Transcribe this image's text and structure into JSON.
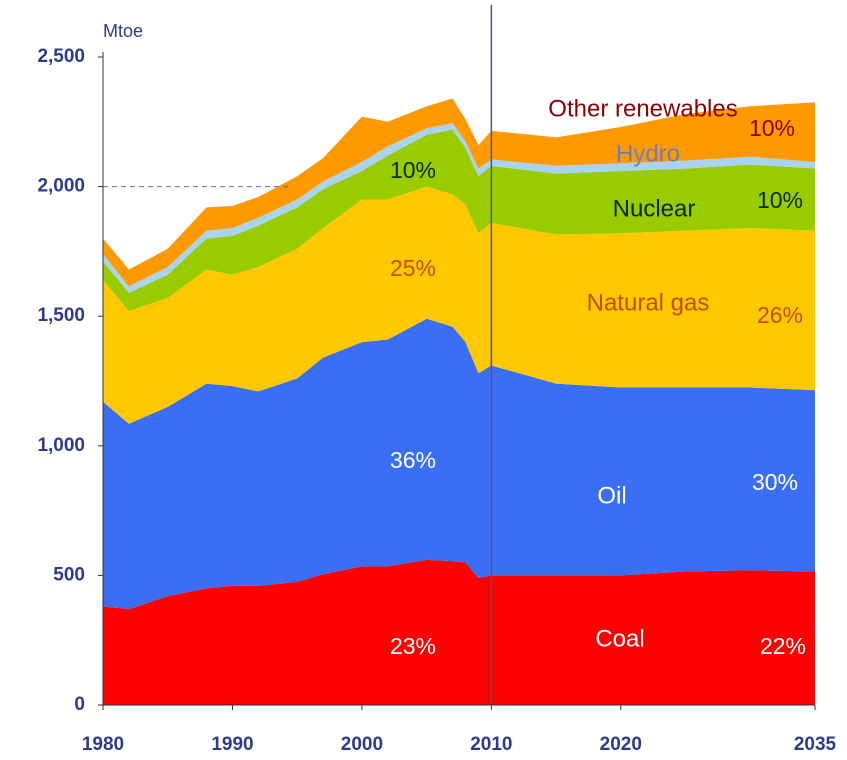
{
  "chart_data": {
    "type": "stacked_area",
    "y_label": "Mtoe",
    "x": [
      1980,
      1982,
      1985,
      1988,
      1990,
      1992,
      1995,
      1997,
      2000,
      2002,
      2005,
      2007,
      2008,
      2009,
      2010,
      2015,
      2020,
      2025,
      2030,
      2035
    ],
    "series": [
      {
        "name": "Coal",
        "color": "#ff0000",
        "values": [
          380,
          370,
          420,
          450,
          460,
          460,
          475,
          505,
          535,
          535,
          560,
          555,
          550,
          490,
          500,
          500,
          500,
          515,
          520,
          515
        ]
      },
      {
        "name": "Oil",
        "color": "#3a6ef5",
        "values": [
          790,
          715,
          730,
          790,
          770,
          750,
          785,
          835,
          865,
          875,
          930,
          905,
          850,
          790,
          810,
          740,
          725,
          710,
          705,
          700
        ]
      },
      {
        "name": "Natural gas",
        "color": "#ffc800",
        "values": [
          470,
          435,
          420,
          440,
          430,
          480,
          500,
          500,
          550,
          540,
          510,
          510,
          530,
          540,
          550,
          575,
          595,
          605,
          615,
          615
        ]
      },
      {
        "name": "Nuclear",
        "color": "#99cc00",
        "values": [
          70,
          70,
          90,
          120,
          150,
          160,
          160,
          150,
          110,
          170,
          200,
          250,
          220,
          220,
          220,
          235,
          240,
          240,
          245,
          240
        ]
      },
      {
        "name": "Hydro",
        "color": "#a8d4f2",
        "values": [
          30,
          25,
          30,
          30,
          30,
          30,
          30,
          30,
          35,
          35,
          25,
          25,
          25,
          30,
          25,
          30,
          30,
          30,
          30,
          25
        ]
      },
      {
        "name": "Other renewables",
        "color": "#ff9900",
        "values": [
          60,
          65,
          70,
          90,
          85,
          80,
          90,
          90,
          175,
          95,
          85,
          95,
          85,
          90,
          110,
          110,
          140,
          180,
          195,
          230
        ]
      }
    ],
    "annotations": [
      "23%",
      "36%",
      "25%",
      "10%",
      "22%",
      "30%",
      "26%",
      "10%",
      "10%"
    ],
    "xlim": [
      1980,
      2035
    ],
    "xticks": [
      1980,
      1990,
      2000,
      2010,
      2020,
      2035
    ],
    "ylim": [
      0,
      2500
    ],
    "yticks": [
      0,
      {
        "value": 500,
        "label": "500"
      },
      {
        "value": 1000,
        "label": "1,000"
      },
      {
        "value": 1500,
        "label": "1,500"
      },
      {
        "value": 2000,
        "label": "2,000"
      },
      {
        "value": 2500,
        "label": "2,500"
      }
    ]
  }
}
